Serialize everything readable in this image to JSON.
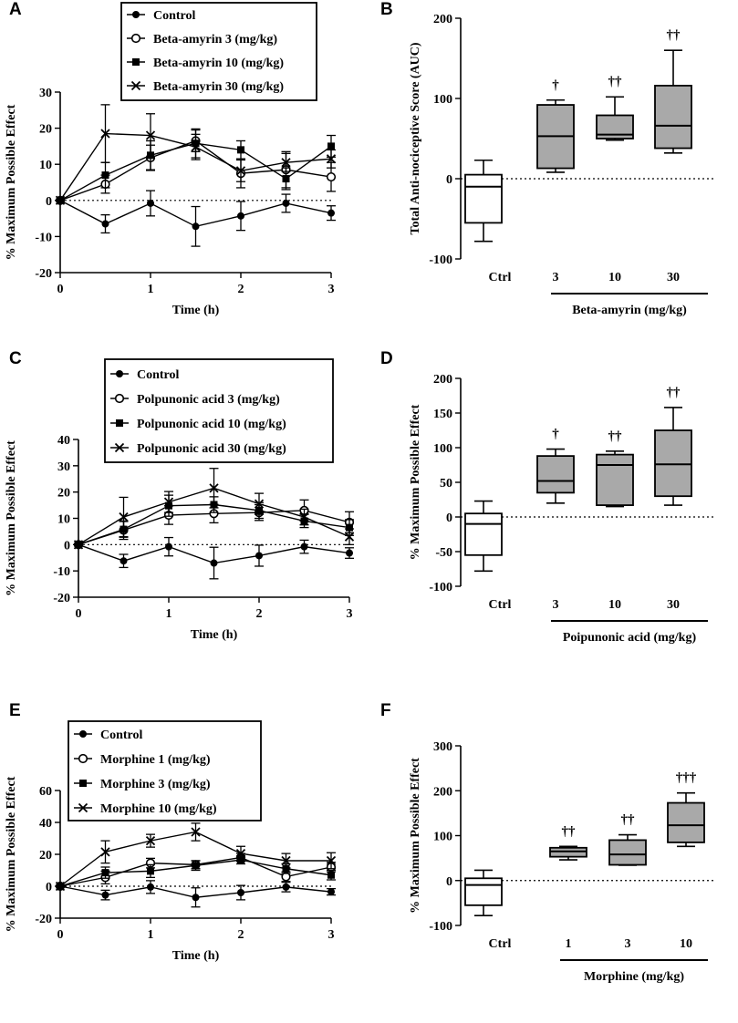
{
  "chart_data": [
    {
      "panel": "A",
      "type": "line",
      "ylabel": "% Maximum Possible Effect",
      "xlabel": "Time (h)",
      "x": [
        0,
        0.5,
        1,
        1.5,
        2,
        2.5,
        3
      ],
      "ylim": [
        -20,
        30
      ],
      "yticks": [
        -20,
        -10,
        0,
        10,
        20,
        30
      ],
      "xlim": [
        0,
        3
      ],
      "xticks": [
        0,
        1,
        2,
        3
      ],
      "series": [
        {
          "name": "Control",
          "marker": "dot",
          "values": [
            0,
            -6.5,
            -0.8,
            -7.2,
            -4.3,
            -0.8,
            -3.5
          ],
          "errors": [
            0,
            2.5,
            3.5,
            5.5,
            4,
            2.5,
            2
          ]
        },
        {
          "name": "Beta-amyrin 3 (mg/kg)",
          "marker": "circle",
          "values": [
            0,
            4.5,
            11.8,
            16.5,
            7.5,
            8.5,
            6.5
          ],
          "errors": [
            0,
            2.5,
            3.5,
            3,
            4,
            5,
            4
          ]
        },
        {
          "name": "Beta-amyrin 10 (mg/kg)",
          "marker": "square",
          "values": [
            0,
            7,
            12.5,
            15.8,
            14,
            6,
            15
          ],
          "errors": [
            0,
            3.5,
            4,
            4,
            2.5,
            3,
            3
          ]
        },
        {
          "name": "Beta-amyrin 30 (mg/kg)",
          "marker": "cross",
          "values": [
            0,
            18.5,
            18,
            14.8,
            8.2,
            10.5,
            11.5
          ],
          "errors": [
            0,
            8,
            6,
            3.5,
            3,
            2.5,
            2.5
          ]
        }
      ],
      "legend": "top"
    },
    {
      "panel": "B",
      "type": "box",
      "ylabel": "Total Anti-nociceptive Score (AUC)",
      "xlabel": "Beta-amyrin (mg/kg)",
      "categories": [
        "Ctrl",
        "3",
        "10",
        "30"
      ],
      "ylim": [
        -100,
        200
      ],
      "yticks": [
        -100,
        0,
        100,
        200
      ],
      "boxes": [
        {
          "min": -78,
          "q1": -55,
          "median": -10,
          "q3": 5,
          "max": 23,
          "fill": "#ffffff",
          "annotation": ""
        },
        {
          "min": 8,
          "q1": 13,
          "median": 53,
          "q3": 92,
          "max": 98,
          "fill": "#a9a9a9",
          "annotation": "†"
        },
        {
          "min": 48,
          "q1": 50,
          "median": 55,
          "q3": 79,
          "max": 102,
          "fill": "#a9a9a9",
          "annotation": "††"
        },
        {
          "min": 32,
          "q1": 38,
          "median": 66,
          "q3": 116,
          "max": 160,
          "fill": "#a9a9a9",
          "annotation": "††"
        }
      ],
      "bracket_from": "3"
    },
    {
      "panel": "C",
      "type": "line",
      "ylabel": "% Maximum Possible Effect",
      "xlabel": "Time (h)",
      "x": [
        0,
        0.5,
        1,
        1.5,
        2,
        2.5,
        3
      ],
      "ylim": [
        -20,
        40
      ],
      "yticks": [
        -20,
        -10,
        0,
        10,
        20,
        30,
        40
      ],
      "xlim": [
        0,
        3
      ],
      "xticks": [
        0,
        1,
        2,
        3
      ],
      "series": [
        {
          "name": "Control",
          "marker": "dot",
          "values": [
            0,
            -6.2,
            -0.8,
            -7,
            -4.2,
            -0.8,
            -3.2
          ],
          "errors": [
            0,
            2.5,
            3.5,
            6,
            4,
            2.5,
            2
          ]
        },
        {
          "name": "Polpunonic acid 3 (mg/kg)",
          "marker": "circle",
          "values": [
            0,
            5.5,
            11.2,
            11.8,
            12.2,
            13,
            8.5
          ],
          "errors": [
            0,
            3.5,
            3.5,
            3.5,
            3,
            4,
            4
          ]
        },
        {
          "name": "Polpunonic acid 10 (mg/kg)",
          "marker": "square",
          "values": [
            0,
            5.8,
            14.8,
            15.2,
            13,
            9,
            6.5
          ],
          "errors": [
            0,
            3,
            4,
            3,
            3,
            2.5,
            3
          ]
        },
        {
          "name": "Polpunonic acid 30 (mg/kg)",
          "marker": "cross",
          "values": [
            0,
            10.5,
            16.2,
            21.5,
            15.5,
            10.5,
            3
          ],
          "errors": [
            0,
            7.5,
            4,
            7.5,
            4,
            3,
            3
          ]
        }
      ],
      "legend": "top"
    },
    {
      "panel": "D",
      "type": "box",
      "ylabel": "% Maximum Possible Effect",
      "xlabel": "Poipunonic acid (mg/kg)",
      "categories": [
        "Ctrl",
        "3",
        "10",
        "30"
      ],
      "ylim": [
        -100,
        200
      ],
      "yticks": [
        -100,
        -50,
        0,
        50,
        100,
        150,
        200
      ],
      "boxes": [
        {
          "min": -78,
          "q1": -55,
          "median": -10,
          "q3": 5,
          "max": 23,
          "fill": "#ffffff",
          "annotation": ""
        },
        {
          "min": 20,
          "q1": 35,
          "median": 52,
          "q3": 88,
          "max": 98,
          "fill": "#a9a9a9",
          "annotation": "†"
        },
        {
          "min": 15,
          "q1": 17,
          "median": 75,
          "q3": 90,
          "max": 95,
          "fill": "#a9a9a9",
          "annotation": "††"
        },
        {
          "min": 17,
          "q1": 30,
          "median": 76,
          "q3": 125,
          "max": 158,
          "fill": "#a9a9a9",
          "annotation": "††"
        }
      ],
      "bracket_from": "3"
    },
    {
      "panel": "E",
      "type": "line",
      "ylabel": "% Maximum Possible Effect",
      "xlabel": "Time (h)",
      "x": [
        0,
        0.5,
        1,
        1.5,
        2,
        2.5,
        3
      ],
      "ylim": [
        -20,
        60
      ],
      "yticks": [
        -20,
        0,
        20,
        40,
        60
      ],
      "xlim": [
        0,
        3
      ],
      "xticks": [
        0,
        1,
        2,
        3
      ],
      "series": [
        {
          "name": "Control",
          "marker": "dot",
          "values": [
            0,
            -5.5,
            -0.5,
            -7,
            -4,
            -0.5,
            -3.5
          ],
          "errors": [
            0,
            3,
            4,
            6,
            4.5,
            3,
            2
          ]
        },
        {
          "name": "Morphine 1 (mg/kg)",
          "marker": "circle",
          "values": [
            0,
            5.5,
            14.5,
            13.5,
            18,
            6,
            12
          ],
          "errors": [
            0,
            4,
            3,
            2.5,
            2.5,
            3,
            3
          ]
        },
        {
          "name": "Morphine 3 (mg/kg)",
          "marker": "square",
          "values": [
            0,
            8.5,
            9.5,
            13,
            16.5,
            11,
            7
          ],
          "errors": [
            0,
            3.5,
            4,
            3,
            2.5,
            3,
            3
          ]
        },
        {
          "name": "Morphine 10 (mg/kg)",
          "marker": "cross",
          "values": [
            0,
            21.5,
            28.5,
            34,
            20.5,
            16,
            16
          ],
          "errors": [
            0,
            7,
            4,
            5.5,
            4.5,
            4.5,
            5
          ]
        }
      ],
      "legend": "top"
    },
    {
      "panel": "F",
      "type": "box",
      "ylabel": "% Maximum Possible Effect",
      "xlabel": "Morphine (mg/kg)",
      "categories": [
        "Ctrl",
        "1",
        "3",
        "10"
      ],
      "ylim": [
        -100,
        300
      ],
      "yticks": [
        -100,
        0,
        100,
        200,
        300
      ],
      "boxes": [
        {
          "min": -78,
          "q1": -55,
          "median": -10,
          "q3": 5,
          "max": 23,
          "fill": "#ffffff",
          "annotation": ""
        },
        {
          "min": 46,
          "q1": 53,
          "median": 65,
          "q3": 73,
          "max": 76,
          "fill": "#a9a9a9",
          "annotation": "††"
        },
        {
          "min": 34,
          "q1": 35,
          "median": 58,
          "q3": 90,
          "max": 102,
          "fill": "#a9a9a9",
          "annotation": "††"
        },
        {
          "min": 76,
          "q1": 85,
          "median": 123,
          "q3": 173,
          "max": 195,
          "fill": "#a9a9a9",
          "annotation": "†††"
        }
      ],
      "bracket_from": "1"
    }
  ]
}
